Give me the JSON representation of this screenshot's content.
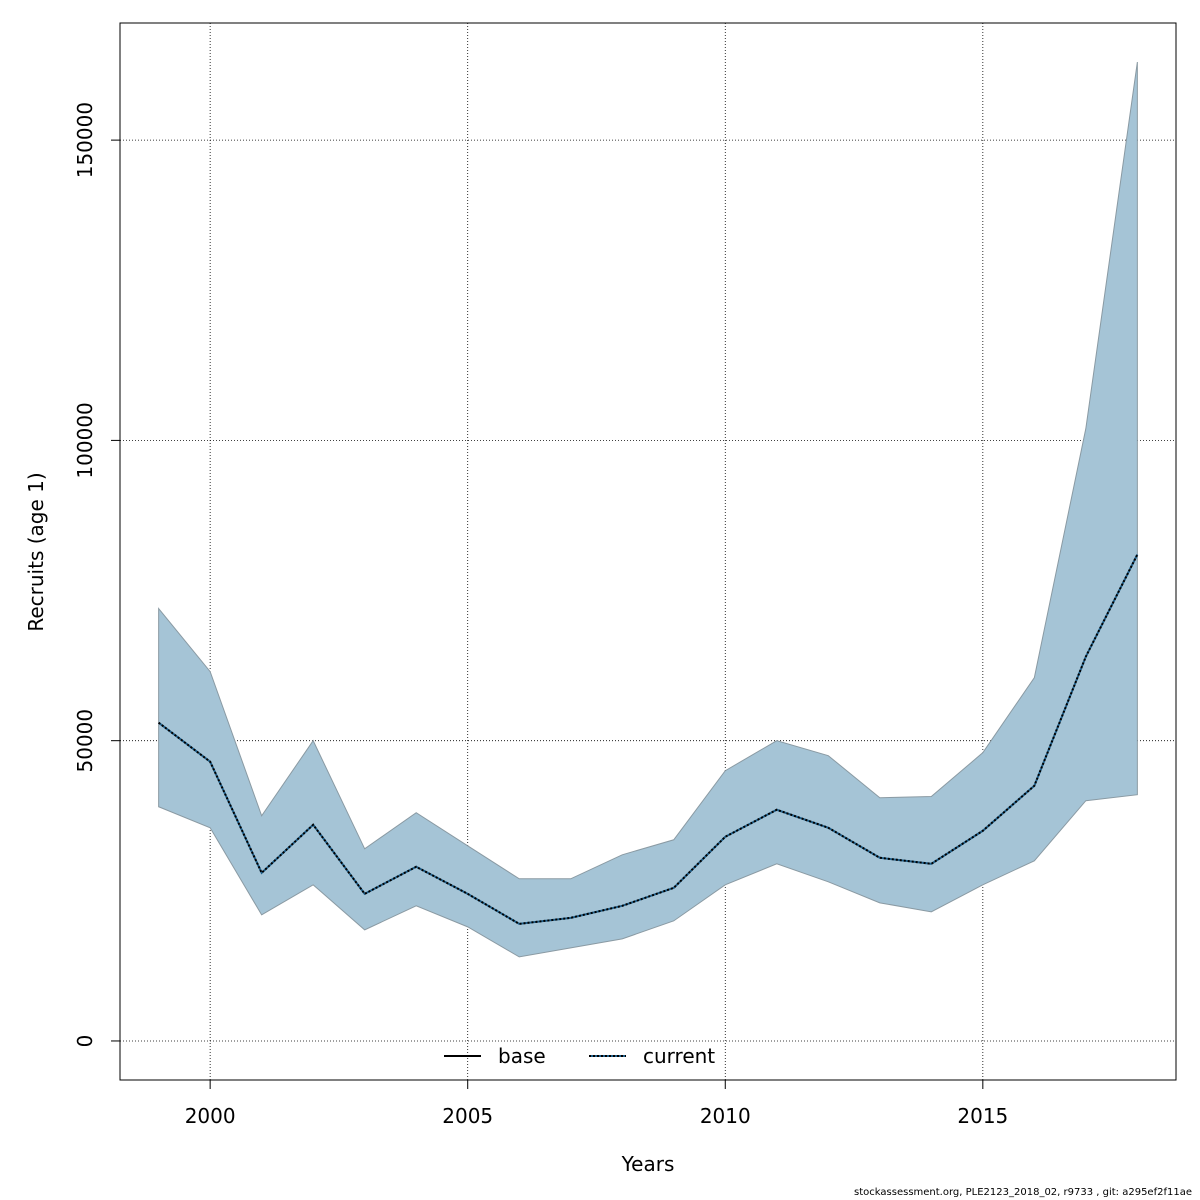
{
  "chart_data": {
    "type": "area",
    "xlabel": "Years",
    "ylabel": "Recruits (age 1)",
    "xlim": [
      1998.25,
      2018.75
    ],
    "ylim": [
      -6500,
      169500
    ],
    "grid": true,
    "x_ticks": [
      2000,
      2005,
      2010,
      2015
    ],
    "y_ticks": [
      0,
      50000,
      100000,
      150000
    ],
    "legend": {
      "placement": "bottom-center",
      "entries": [
        {
          "label": "base",
          "style": "solid",
          "color": "#000000"
        },
        {
          "label": "current",
          "style": "dotted",
          "color": "#000000"
        }
      ]
    },
    "colors": {
      "band_fill": "#a5c4d6",
      "band_edge": "#8a9aa3",
      "current_line": "#000000",
      "current_accent": "#1f5f8a"
    },
    "x": [
      1999,
      2000,
      2001,
      2002,
      2003,
      2004,
      2005,
      2006,
      2007,
      2008,
      2009,
      2010,
      2011,
      2012,
      2013,
      2014,
      2015,
      2016,
      2017,
      2018
    ],
    "series": [
      {
        "name": "current",
        "role": "estimate",
        "values": [
          53000,
          46500,
          28000,
          36000,
          24500,
          29000,
          24500,
          19500,
          20500,
          22500,
          25500,
          34000,
          38500,
          35500,
          30500,
          29500,
          35000,
          42500,
          64000,
          81000
        ]
      },
      {
        "role": "upper",
        "values": [
          72000,
          61500,
          37500,
          50000,
          32000,
          38000,
          32500,
          27000,
          27000,
          31000,
          33500,
          45000,
          50000,
          47500,
          40500,
          40700,
          48000,
          60500,
          102000,
          163000
        ]
      },
      {
        "role": "lower",
        "values": [
          39000,
          35500,
          21000,
          26000,
          18500,
          22500,
          19000,
          14000,
          15500,
          17000,
          20000,
          26000,
          29500,
          26500,
          23000,
          21500,
          26000,
          30000,
          40000,
          41000
        ]
      }
    ]
  },
  "footnote": "stockassessment.org, PLE2123_2018_02, r9733 , git: a295ef2f11ae"
}
